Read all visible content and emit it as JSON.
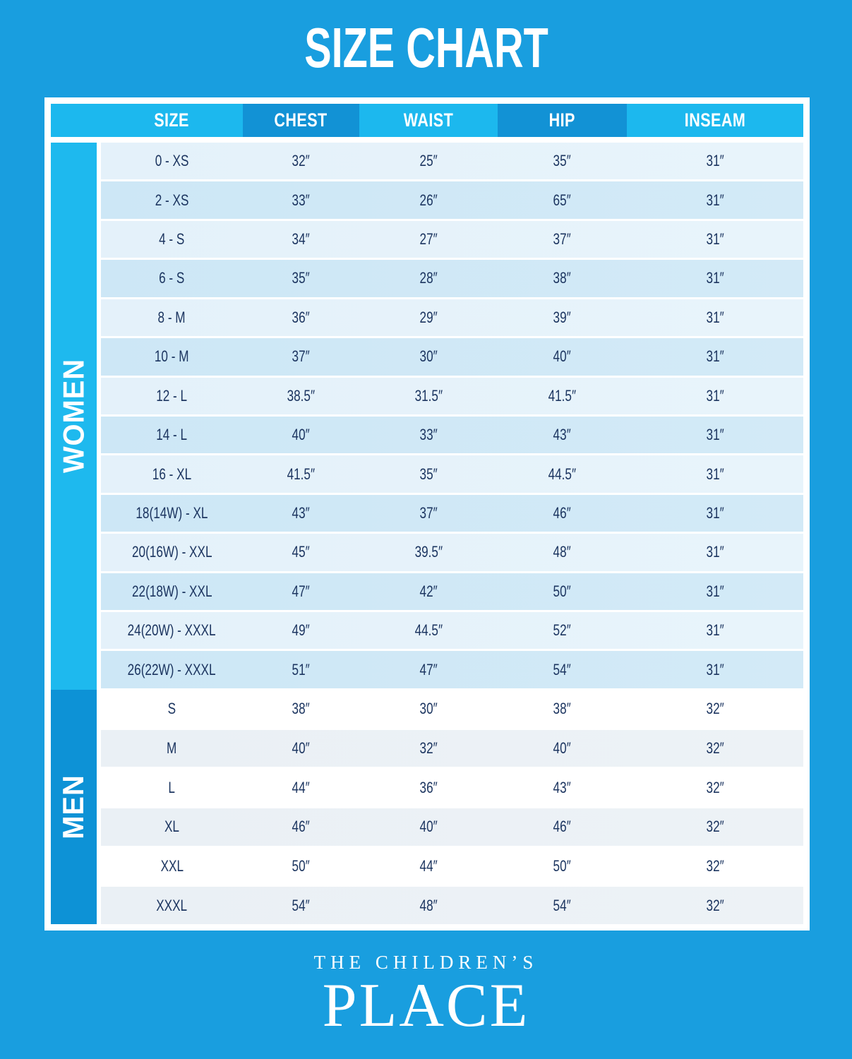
{
  "page": {
    "title": "SIZE CHART"
  },
  "colors": {
    "page_bg": "#199EDF",
    "header_light": "#1CB8EE",
    "header_dark": "#1292D5",
    "women_sidebar": "#1EB9EE",
    "men_sidebar": "#0D92D6",
    "text_navy": "#1C3560",
    "row_women_light": "#E8F4FB",
    "row_women_dark": "#D3EAF7",
    "row_men_light": "#FFFFFF",
    "row_men_alt": "#EDF2F6"
  },
  "table": {
    "headers": [
      "SIZE",
      "CHEST",
      "WAIST",
      "HIP",
      "INSEAM"
    ],
    "sections": [
      {
        "label": "WOMEN",
        "rows": [
          {
            "size": "0 - XS",
            "chest": "32″",
            "waist": "25″",
            "hip": "35″",
            "inseam": "31″"
          },
          {
            "size": "2 - XS",
            "chest": "33″",
            "waist": "26″",
            "hip": "65″",
            "inseam": "31″"
          },
          {
            "size": "4 - S",
            "chest": "34″",
            "waist": "27″",
            "hip": "37″",
            "inseam": "31″"
          },
          {
            "size": "6 - S",
            "chest": "35″",
            "waist": "28″",
            "hip": "38″",
            "inseam": "31″"
          },
          {
            "size": "8 - M",
            "chest": "36″",
            "waist": "29″",
            "hip": "39″",
            "inseam": "31″"
          },
          {
            "size": "10 - M",
            "chest": "37″",
            "waist": "30″",
            "hip": "40″",
            "inseam": "31″"
          },
          {
            "size": "12 - L",
            "chest": "38.5″",
            "waist": "31.5″",
            "hip": "41.5″",
            "inseam": "31″"
          },
          {
            "size": "14 - L",
            "chest": "40″",
            "waist": "33″",
            "hip": "43″",
            "inseam": "31″"
          },
          {
            "size": "16 - XL",
            "chest": "41.5″",
            "waist": "35″",
            "hip": "44.5″",
            "inseam": "31″"
          },
          {
            "size": "18(14W) - XL",
            "chest": "43″",
            "waist": "37″",
            "hip": "46″",
            "inseam": "31″"
          },
          {
            "size": "20(16W) - XXL",
            "chest": "45″",
            "waist": "39.5″",
            "hip": "48″",
            "inseam": "31″"
          },
          {
            "size": "22(18W) - XXL",
            "chest": "47″",
            "waist": "42″",
            "hip": "50″",
            "inseam": "31″"
          },
          {
            "size": "24(20W) - XXXL",
            "chest": "49″",
            "waist": "44.5″",
            "hip": "52″",
            "inseam": "31″"
          },
          {
            "size": "26(22W) - XXXL",
            "chest": "51″",
            "waist": "47″",
            "hip": "54″",
            "inseam": "31″"
          }
        ]
      },
      {
        "label": "MEN",
        "rows": [
          {
            "size": "S",
            "chest": "38″",
            "waist": "30″",
            "hip": "38″",
            "inseam": "32″"
          },
          {
            "size": "M",
            "chest": "40″",
            "waist": "32″",
            "hip": "40″",
            "inseam": "32″"
          },
          {
            "size": "L",
            "chest": "44″",
            "waist": "36″",
            "hip": "43″",
            "inseam": "32″"
          },
          {
            "size": "XL",
            "chest": "46″",
            "waist": "40″",
            "hip": "46″",
            "inseam": "32″"
          },
          {
            "size": "XXL",
            "chest": "50″",
            "waist": "44″",
            "hip": "50″",
            "inseam": "32″"
          },
          {
            "size": "XXXL",
            "chest": "54″",
            "waist": "48″",
            "hip": "54″",
            "inseam": "32″"
          }
        ]
      }
    ]
  },
  "footer": {
    "brand_top": "THE CHILDREN’S",
    "brand_bottom": "PLACE"
  }
}
